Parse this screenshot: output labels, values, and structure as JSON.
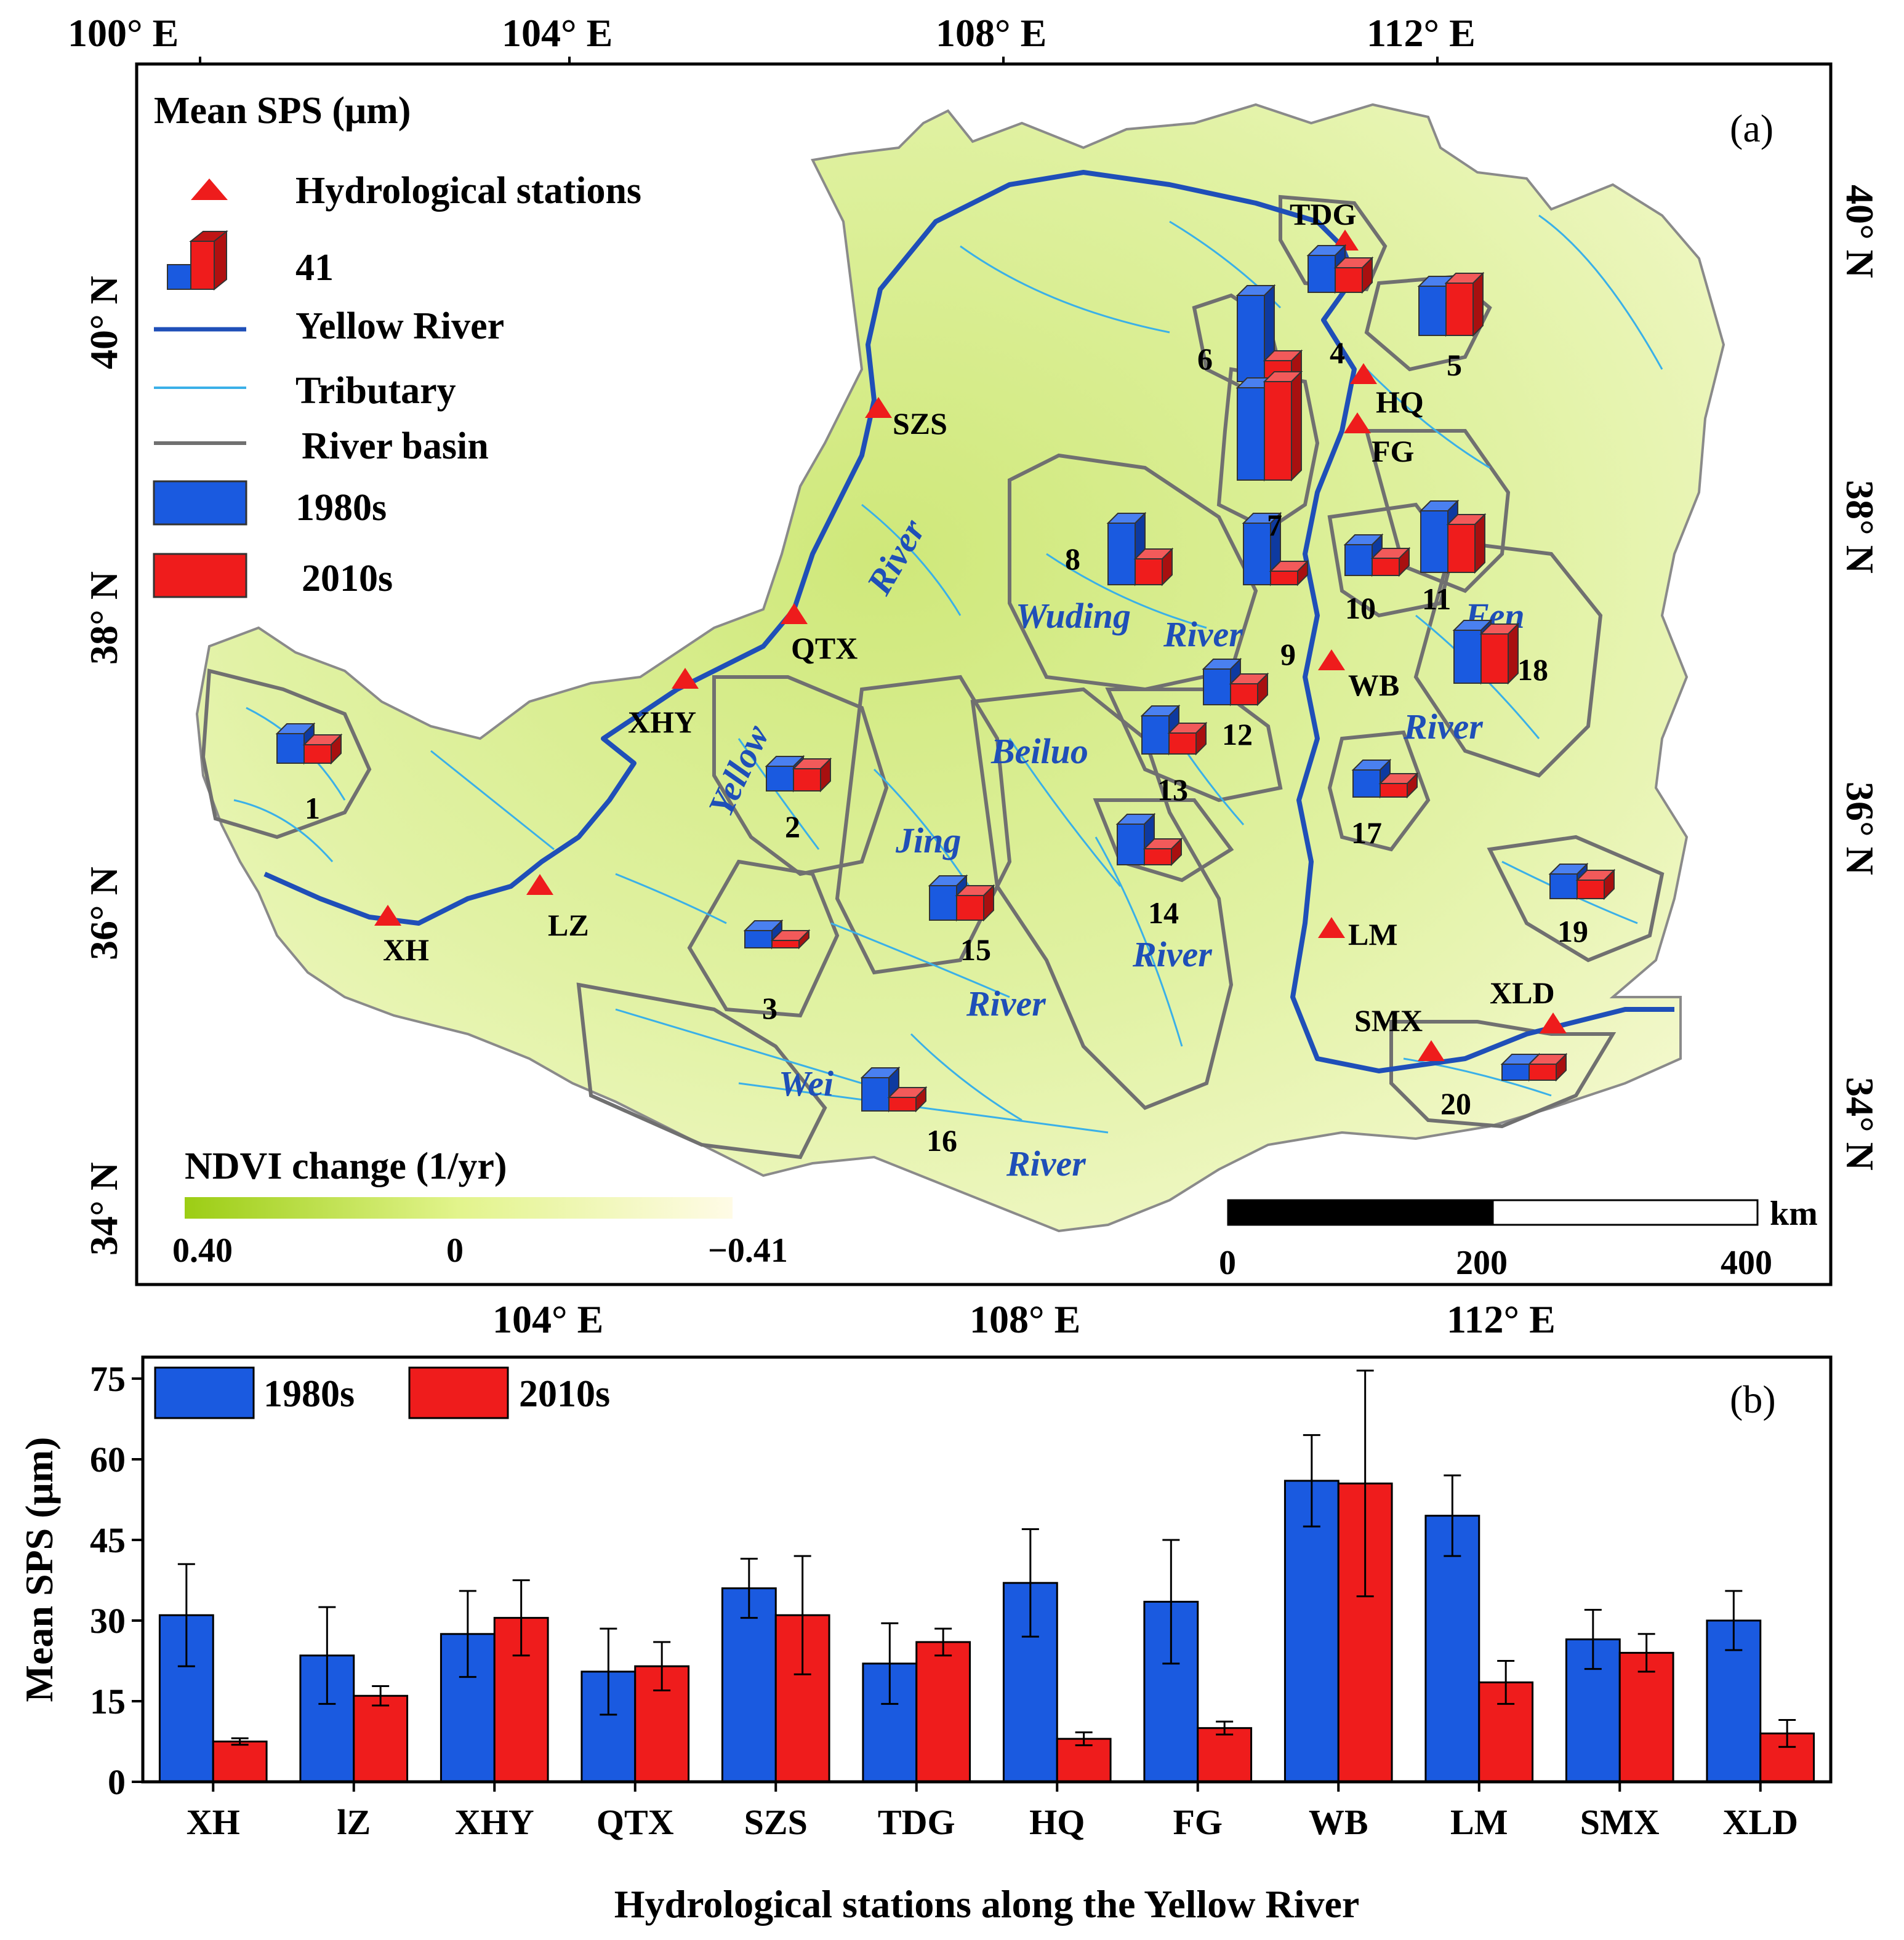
{
  "map": {
    "panel_label": "(a)",
    "legend": {
      "title": "Mean SPS (μm)",
      "stations": "Hydrological stations",
      "scale_value": "41",
      "yellow_river": "Yellow River",
      "tributary": "Tributary",
      "basin": "River basin",
      "s1980": "1980s",
      "s2010": "2010s"
    },
    "top_axis": [
      "100° E",
      "104° E",
      "108° E",
      "112° E"
    ],
    "bottom_axis": [
      "104° E",
      "108° E",
      "112° E"
    ],
    "left_axis": [
      "40° N",
      "38° N",
      "36° N",
      "34° N"
    ],
    "right_axis": [
      "40° N",
      "38° N",
      "36° N",
      "34° N"
    ],
    "ndvi": {
      "title": "NDVI change (1/yr)",
      "min": "0.40",
      "mid": "0",
      "max": "−0.41"
    },
    "scalebar": {
      "unit": "km",
      "t0": "0",
      "t1": "200",
      "t2": "400"
    },
    "stations": [
      "TDG",
      "HQ",
      "FG",
      "SZS",
      "QTX",
      "XHY",
      "WB",
      "LM",
      "SMX",
      "XLD",
      "LZ",
      "XH"
    ],
    "rivers": [
      "River",
      "Yellow",
      "Wuding",
      "River",
      "Fen",
      "River",
      "Beiluo",
      "Jing",
      "River",
      "River",
      "Wei",
      "River"
    ],
    "basins": [
      "1",
      "2",
      "3",
      "4",
      "5",
      "6",
      "7",
      "8",
      "9",
      "10",
      "11",
      "12",
      "13",
      "14",
      "15",
      "16",
      "17",
      "18",
      "19",
      "20"
    ],
    "colors": {
      "s1980": "#1a5ae0",
      "s2010": "#ef1c1c",
      "river": "#1f4fb8",
      "tributary": "#3ab0e8",
      "basin": "#707070",
      "land": "#e3f2a6"
    }
  },
  "chart_data": {
    "type": "bar",
    "panel_label": "(b)",
    "title": "",
    "xlabel": "Hydrological stations along the Yellow River",
    "ylabel": "Mean SPS (μm)",
    "ylim": [
      0,
      79
    ],
    "yticks": [
      0,
      15,
      30,
      45,
      60,
      75
    ],
    "legend": [
      "1980s",
      "2010s"
    ],
    "categories": [
      "XH",
      "lZ",
      "XHY",
      "QTX",
      "SZS",
      "TDG",
      "HQ",
      "FG",
      "WB",
      "LM",
      "SMX",
      "XLD"
    ],
    "series": [
      {
        "name": "1980s",
        "values": [
          31,
          23.5,
          27.5,
          20.5,
          36,
          22,
          37,
          33.5,
          56,
          49.5,
          26.5,
          30
        ],
        "errors": [
          9.5,
          9,
          8,
          8,
          5.5,
          7.5,
          10,
          11.5,
          8.5,
          7.5,
          5.5,
          5.5
        ]
      },
      {
        "name": "2010s",
        "values": [
          7.5,
          16,
          30.5,
          21.5,
          31,
          26,
          8,
          10,
          55.5,
          18.5,
          24,
          9
        ],
        "errors": [
          0.6,
          1.8,
          7,
          4.5,
          11,
          2.5,
          1.2,
          1.2,
          21,
          4,
          3.5,
          2.5
        ]
      }
    ]
  }
}
